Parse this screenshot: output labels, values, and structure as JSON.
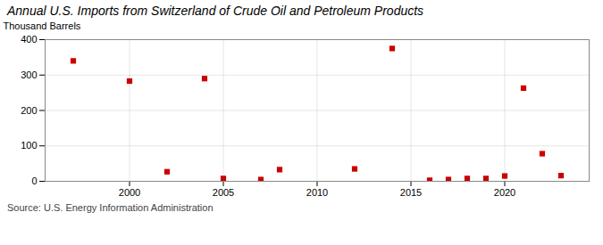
{
  "chart_data": {
    "type": "scatter",
    "title": "Annual U.S. Imports from Switzerland of Crude Oil and Petroleum Products",
    "ylabel": "Thousand Barrels",
    "source": "Source: U.S. Energy Information Administration",
    "x": [
      1997,
      2000,
      2002,
      2004,
      2005,
      2007,
      2008,
      2012,
      2014,
      2016,
      2017,
      2018,
      2019,
      2020,
      2021,
      2022,
      2023
    ],
    "values": [
      340,
      283,
      27,
      290,
      8,
      5,
      33,
      35,
      375,
      3,
      5,
      8,
      8,
      15,
      263,
      78,
      16
    ],
    "color": "#cc0000",
    "marker": "square",
    "xlim": [
      1995.5,
      2024.5
    ],
    "xticks": [
      2000,
      2005,
      2010,
      2015,
      2020
    ],
    "ylim": [
      0,
      400
    ],
    "yticks": [
      0,
      100,
      200,
      300,
      400
    ],
    "grid": true
  }
}
